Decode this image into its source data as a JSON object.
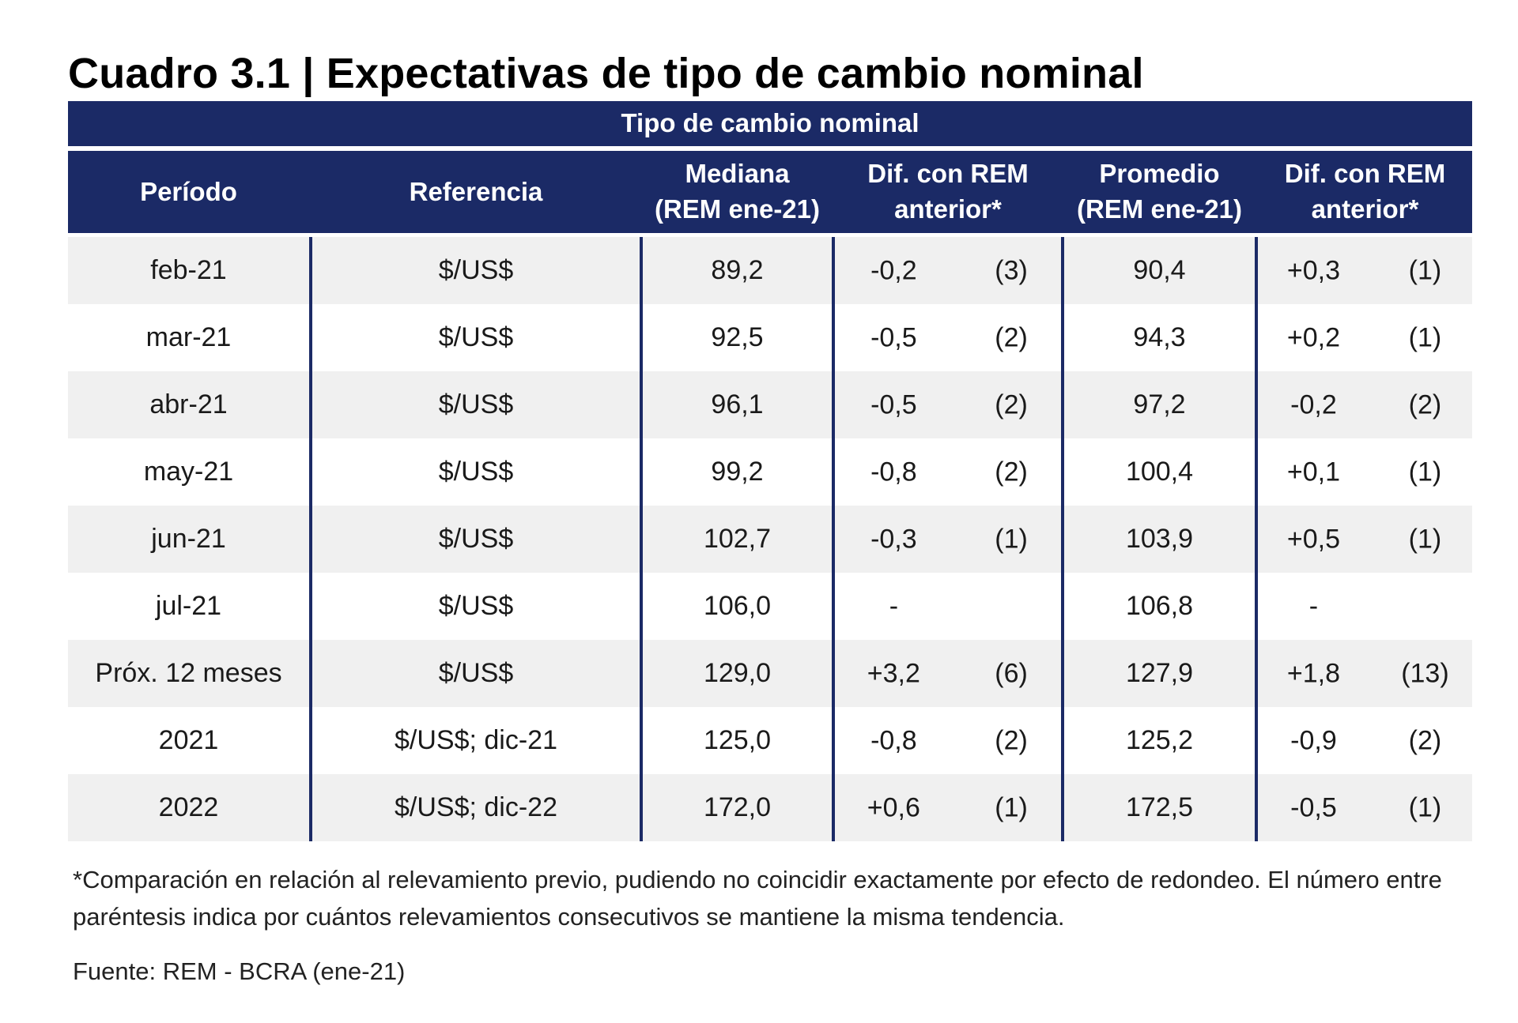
{
  "title": "Cuadro 3.1 | Expectativas de tipo de cambio nominal",
  "table": {
    "super_header": "Tipo de cambio nominal",
    "columns": {
      "periodo": "Período",
      "referencia": "Referencia",
      "mediana_l1": "Mediana",
      "mediana_l2": "(REM ene-21)",
      "dif_l1": "Dif. con REM",
      "dif_l2": "anterior*",
      "promedio_l1": "Promedio",
      "promedio_l2": "(REM ene-21)",
      "dif2_l1": "Dif. con REM",
      "dif2_l2": "anterior*"
    },
    "rows": [
      {
        "periodo": "feb-21",
        "referencia": "$/US$",
        "mediana": "89,2",
        "dif_mediana": "-0,2",
        "n_mediana": "(3)",
        "promedio": "90,4",
        "dif_promedio": "+0,3",
        "n_promedio": "(1)"
      },
      {
        "periodo": "mar-21",
        "referencia": "$/US$",
        "mediana": "92,5",
        "dif_mediana": "-0,5",
        "n_mediana": "(2)",
        "promedio": "94,3",
        "dif_promedio": "+0,2",
        "n_promedio": "(1)"
      },
      {
        "periodo": "abr-21",
        "referencia": "$/US$",
        "mediana": "96,1",
        "dif_mediana": "-0,5",
        "n_mediana": "(2)",
        "promedio": "97,2",
        "dif_promedio": "-0,2",
        "n_promedio": "(2)"
      },
      {
        "periodo": "may-21",
        "referencia": "$/US$",
        "mediana": "99,2",
        "dif_mediana": "-0,8",
        "n_mediana": "(2)",
        "promedio": "100,4",
        "dif_promedio": "+0,1",
        "n_promedio": "(1)"
      },
      {
        "periodo": "jun-21",
        "referencia": "$/US$",
        "mediana": "102,7",
        "dif_mediana": "-0,3",
        "n_mediana": "(1)",
        "promedio": "103,9",
        "dif_promedio": "+0,5",
        "n_promedio": "(1)"
      },
      {
        "periodo": "jul-21",
        "referencia": "$/US$",
        "mediana": "106,0",
        "dif_mediana": "-",
        "n_mediana": "",
        "promedio": "106,8",
        "dif_promedio": "-",
        "n_promedio": ""
      },
      {
        "periodo": "Próx. 12 meses",
        "referencia": "$/US$",
        "mediana": "129,0",
        "dif_mediana": "+3,2",
        "n_mediana": "(6)",
        "promedio": "127,9",
        "dif_promedio": "+1,8",
        "n_promedio": "(13)"
      },
      {
        "periodo": "2021",
        "referencia": "$/US$; dic-21",
        "mediana": "125,0",
        "dif_mediana": "-0,8",
        "n_mediana": "(2)",
        "promedio": "125,2",
        "dif_promedio": "-0,9",
        "n_promedio": "(2)"
      },
      {
        "periodo": "2022",
        "referencia": "$/US$; dic-22",
        "mediana": "172,0",
        "dif_mediana": "+0,6",
        "n_mediana": "(1)",
        "promedio": "172,5",
        "dif_promedio": "-0,5",
        "n_promedio": "(1)"
      }
    ]
  },
  "footnote": "*Comparación en relación al relevamiento previo, pudiendo no coincidir exactamente por efecto de redondeo. El número entre paréntesis indica por cuántos relevamientos consecutivos se mantiene la misma tendencia.",
  "source": "Fuente: REM - BCRA (ene-21)",
  "colors": {
    "header_bg": "#1b2a66",
    "row_shade": "#f0f0f0"
  }
}
